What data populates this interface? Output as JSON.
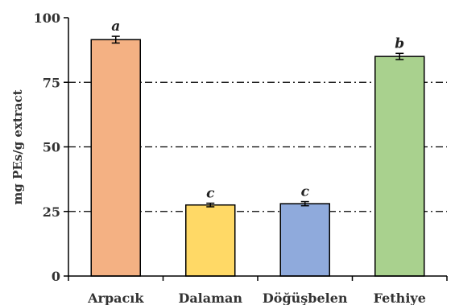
{
  "chart_data": {
    "type": "bar",
    "categories": [
      "Arpacık",
      "Dalaman",
      "Döğüşbelen",
      "Fethiye"
    ],
    "values": [
      91.5,
      27.5,
      28.0,
      85.0
    ],
    "errors": [
      1.3,
      0.7,
      0.8,
      1.2
    ],
    "significance_labels": [
      "a",
      "c",
      "c",
      "b"
    ],
    "bar_colors": [
      "#F4B183",
      "#FFD966",
      "#8FAADC",
      "#A9D18E"
    ],
    "ylabel": "mg PEs/g extract",
    "xlabel": "",
    "ylim": [
      0,
      100
    ],
    "yticks": [
      0,
      25,
      50,
      75,
      100
    ],
    "grid": "dash-dot horizontal lines at 25, 50, 75"
  }
}
